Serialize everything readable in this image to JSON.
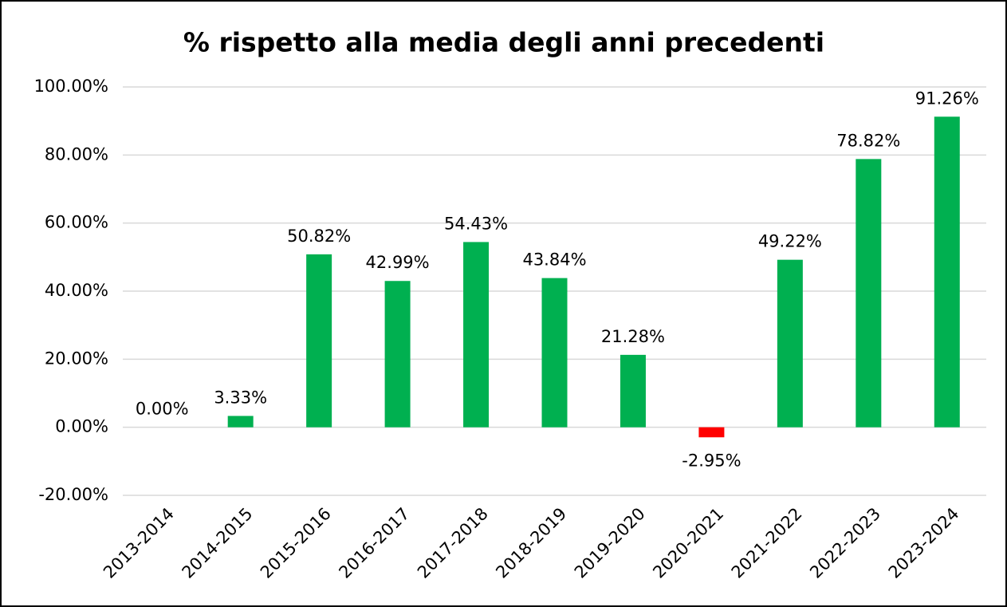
{
  "chart_data": {
    "type": "bar",
    "title": "% rispetto alla media degli anni precedenti",
    "categories": [
      "2013-2014",
      "2014-2015",
      "2015-2016",
      "2016-2017",
      "2017-2018",
      "2018-2019",
      "2019-2020",
      "2020-2021",
      "2021-2022",
      "2022-2023",
      "2023-2024"
    ],
    "values": [
      0,
      3.33,
      50.82,
      42.99,
      54.43,
      43.84,
      21.28,
      -2.95,
      49.22,
      78.82,
      91.26
    ],
    "value_labels": [
      "0.00%",
      "3.33%",
      "50.82%",
      "42.99%",
      "54.43%",
      "43.84%",
      "21.28%",
      "-2.95%",
      "49.22%",
      "78.82%",
      "91.26%"
    ],
    "color": "#00b050",
    "negative_color": "#ff0000",
    "ylim": [
      -20,
      100
    ],
    "yticks": [
      {
        "value": -20,
        "label": "-20.00%"
      },
      {
        "value": 0,
        "label": "0.00%"
      },
      {
        "value": 20,
        "label": "20.00%"
      },
      {
        "value": 40,
        "label": "40.00%"
      },
      {
        "value": 60,
        "label": "60.00%"
      },
      {
        "value": 80,
        "label": "80.00%"
      },
      {
        "value": 100,
        "label": "100.00%"
      }
    ],
    "grid": true
  }
}
